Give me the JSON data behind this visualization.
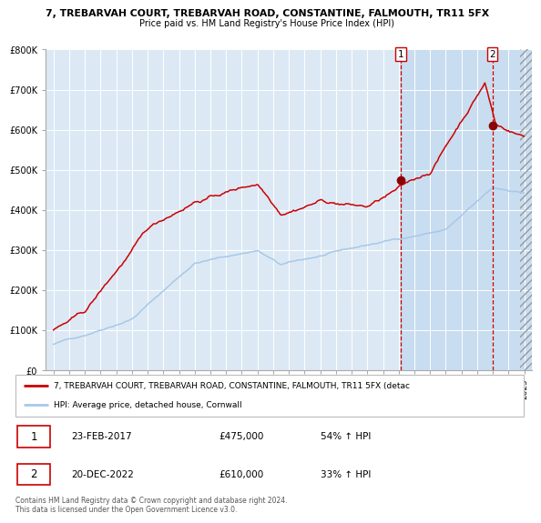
{
  "title_line1": "7, TREBARVAH COURT, TREBARVAH ROAD, CONSTANTINE, FALMOUTH, TR11 5FX",
  "title_line2": "Price paid vs. HM Land Registry's House Price Index (HPI)",
  "hpi_color": "#a8c8e8",
  "price_color": "#cc0000",
  "marker_color": "#8b0000",
  "dashed_color": "#cc0000",
  "background_color": "#dce9f5",
  "grid_color": "#ffffff",
  "transaction1": {
    "date_num": 2017.14,
    "price": 475000,
    "label": "1",
    "date_str": "23-FEB-2017",
    "pct": "54% ↑ HPI"
  },
  "transaction2": {
    "date_num": 2022.97,
    "price": 610000,
    "label": "2",
    "date_str": "20-DEC-2022",
    "pct": "33% ↑ HPI"
  },
  "ylim": [
    0,
    800000
  ],
  "xlim": [
    1994.5,
    2025.5
  ],
  "yticks": [
    0,
    100000,
    200000,
    300000,
    400000,
    500000,
    600000,
    700000,
    800000
  ],
  "ytick_labels": [
    "£0",
    "£100K",
    "£200K",
    "£300K",
    "£400K",
    "£500K",
    "£600K",
    "£700K",
    "£800K"
  ],
  "legend_line1": "7, TREBARVAH COURT, TREBARVAH ROAD, CONSTANTINE, FALMOUTH, TR11 5FX (detac",
  "legend_line2": "HPI: Average price, detached house, Cornwall",
  "footnote": "Contains HM Land Registry data © Crown copyright and database right 2024.\nThis data is licensed under the Open Government Licence v3.0.",
  "table_row1": [
    "1",
    "23-FEB-2017",
    "£475,000",
    "54% ↑ HPI"
  ],
  "table_row2": [
    "2",
    "20-DEC-2022",
    "£610,000",
    "33% ↑ HPI"
  ]
}
